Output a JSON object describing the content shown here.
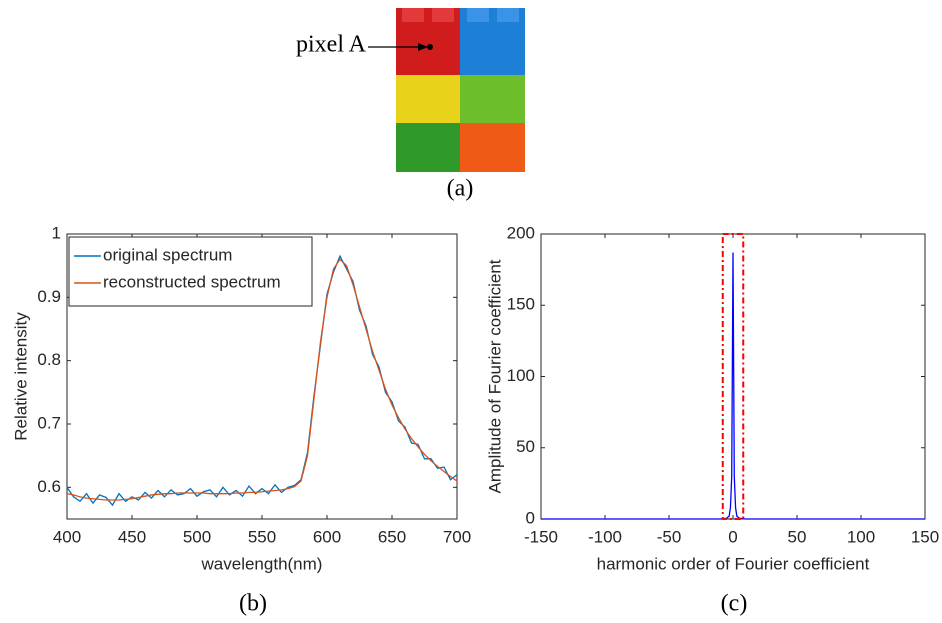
{
  "image_panel": {
    "annotation": "pixel A",
    "caption": "(a)"
  },
  "chart_data": [
    {
      "type": "line",
      "caption": "(b)",
      "x_label": "wavelength(nm)",
      "y_label": "Relative intensity",
      "x": [
        400,
        405,
        410,
        415,
        420,
        425,
        430,
        435,
        440,
        445,
        450,
        455,
        460,
        465,
        470,
        475,
        480,
        485,
        490,
        495,
        500,
        505,
        510,
        515,
        520,
        525,
        530,
        535,
        540,
        545,
        550,
        555,
        560,
        565,
        570,
        575,
        580,
        585,
        590,
        595,
        600,
        605,
        610,
        615,
        620,
        625,
        630,
        635,
        640,
        645,
        650,
        655,
        660,
        665,
        670,
        675,
        680,
        685,
        690,
        695,
        700
      ],
      "series": [
        {
          "name": "original spectrum",
          "color": "#0072bd",
          "values": [
            0.6,
            0.585,
            0.578,
            0.59,
            0.575,
            0.588,
            0.584,
            0.572,
            0.59,
            0.578,
            0.585,
            0.58,
            0.592,
            0.583,
            0.595,
            0.585,
            0.596,
            0.588,
            0.59,
            0.598,
            0.586,
            0.593,
            0.596,
            0.585,
            0.6,
            0.588,
            0.595,
            0.586,
            0.602,
            0.59,
            0.598,
            0.59,
            0.604,
            0.592,
            0.6,
            0.603,
            0.612,
            0.655,
            0.745,
            0.825,
            0.905,
            0.94,
            0.965,
            0.945,
            0.925,
            0.88,
            0.855,
            0.81,
            0.79,
            0.75,
            0.735,
            0.705,
            0.695,
            0.67,
            0.668,
            0.645,
            0.645,
            0.63,
            0.632,
            0.612,
            0.62
          ]
        },
        {
          "name": "reconstructed spectrum",
          "color": "#d95319",
          "values": [
            0.59,
            0.588,
            0.585,
            0.583,
            0.582,
            0.581,
            0.58,
            0.58,
            0.58,
            0.581,
            0.582,
            0.584,
            0.586,
            0.588,
            0.589,
            0.59,
            0.59,
            0.591,
            0.591,
            0.591,
            0.591,
            0.591,
            0.59,
            0.59,
            0.59,
            0.59,
            0.591,
            0.591,
            0.592,
            0.592,
            0.593,
            0.594,
            0.595,
            0.596,
            0.598,
            0.601,
            0.61,
            0.65,
            0.74,
            0.83,
            0.9,
            0.945,
            0.96,
            0.95,
            0.92,
            0.885,
            0.85,
            0.815,
            0.785,
            0.755,
            0.73,
            0.71,
            0.692,
            0.677,
            0.664,
            0.652,
            0.642,
            0.633,
            0.625,
            0.617,
            0.61
          ]
        }
      ],
      "xlim": [
        400,
        700
      ],
      "xticks": [
        400,
        450,
        500,
        550,
        600,
        650,
        700
      ],
      "ylim": [
        0.55,
        1
      ],
      "yticks": [
        0.6,
        0.7,
        0.8,
        0.9,
        1
      ],
      "legend": "upper-left"
    },
    {
      "type": "line",
      "caption": "(c)",
      "x_label": "harmonic order of Fourier coefficient",
      "y_label": "Amplitude of Fourier coefficient",
      "x": [
        -150,
        -10,
        -5,
        -3,
        -2,
        -1,
        0,
        1,
        2,
        3,
        5,
        10,
        150
      ],
      "series": [
        {
          "color": "#0000ff",
          "values": [
            0,
            0,
            0.5,
            2,
            8,
            30,
            187,
            30,
            8,
            2,
            0.5,
            0,
            0
          ]
        }
      ],
      "xlim": [
        -150,
        150
      ],
      "xticks": [
        -150,
        -100,
        -50,
        0,
        50,
        100,
        150
      ],
      "ylim": [
        0,
        200
      ],
      "yticks": [
        0,
        50,
        100,
        150,
        200
      ],
      "highlight_x": [
        -8,
        8
      ],
      "highlight_color": "#ff0000"
    }
  ]
}
